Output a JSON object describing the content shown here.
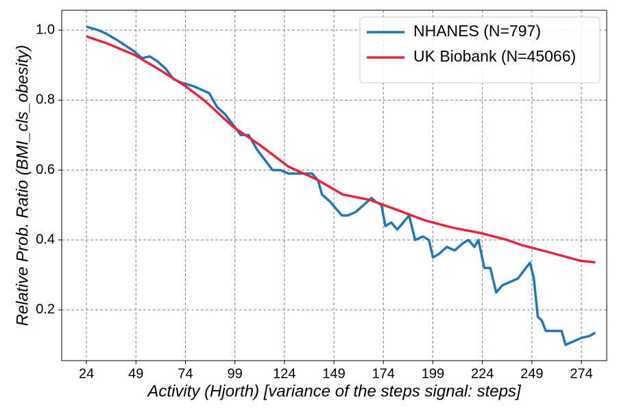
{
  "chart_data": {
    "type": "line",
    "xlabel": "Activity (Hjorth) [variance of the steps signal: steps]",
    "ylabel": "Relative Prob. Ratio (BMI_cls_obesity)",
    "xlim": [
      11.5,
      286.8
    ],
    "ylim": [
      0.055,
      1.057
    ],
    "xticks": [
      24,
      49,
      74,
      99,
      124,
      149,
      174,
      199,
      224,
      249,
      274
    ],
    "yticks": [
      0.2,
      0.4,
      0.6,
      0.8,
      {
        "value": 1,
        "label": "1.0"
      }
    ],
    "grid": true,
    "legend": "upper right",
    "series": [
      {
        "name": "NHANES (N=797)",
        "color": "#1f77b4",
        "x": [
          24,
          30,
          34,
          40,
          48,
          52,
          56,
          60,
          64,
          68,
          72,
          78,
          82,
          86,
          90,
          94,
          98,
          102,
          106,
          110,
          114,
          118,
          122,
          126,
          130,
          134,
          138,
          141,
          143,
          147,
          150,
          153,
          156,
          160,
          164,
          168,
          170,
          173,
          175,
          178,
          181,
          184,
          187,
          190,
          194,
          197,
          199,
          202,
          206,
          210,
          214,
          217,
          220,
          222,
          225,
          228,
          231,
          234,
          238,
          242,
          246,
          248,
          250,
          252,
          254,
          256,
          260,
          264,
          266,
          270,
          274,
          278,
          281
        ],
        "values": [
          1.01,
          1.0,
          0.99,
          0.97,
          0.94,
          0.92,
          0.925,
          0.91,
          0.89,
          0.86,
          0.85,
          0.84,
          0.83,
          0.82,
          0.78,
          0.76,
          0.73,
          0.7,
          0.7,
          0.66,
          0.63,
          0.6,
          0.6,
          0.59,
          0.59,
          0.59,
          0.59,
          0.57,
          0.53,
          0.51,
          0.49,
          0.47,
          0.47,
          0.48,
          0.5,
          0.52,
          0.51,
          0.5,
          0.44,
          0.45,
          0.43,
          0.45,
          0.47,
          0.4,
          0.41,
          0.4,
          0.35,
          0.36,
          0.38,
          0.37,
          0.39,
          0.4,
          0.38,
          0.4,
          0.32,
          0.32,
          0.25,
          0.27,
          0.28,
          0.29,
          0.32,
          0.335,
          0.29,
          0.18,
          0.17,
          0.14,
          0.14,
          0.14,
          0.1,
          0.11,
          0.12,
          0.125,
          0.135
        ]
      },
      {
        "name": "UK Biobank (N=45066)",
        "color": "#e8243c",
        "x": [
          24,
          34,
          48,
          60,
          74,
          84,
          98,
          112,
          126,
          140,
          153.5,
          167,
          181,
          195,
          209,
          223,
          236.6,
          243.5,
          257,
          274,
          281
        ],
        "values": [
          0.982,
          0.963,
          0.93,
          0.89,
          0.84,
          0.797,
          0.724,
          0.67,
          0.61,
          0.574,
          0.53,
          0.515,
          0.486,
          0.456,
          0.435,
          0.42,
          0.4,
          0.386,
          0.366,
          0.34,
          0.336
        ]
      }
    ]
  }
}
